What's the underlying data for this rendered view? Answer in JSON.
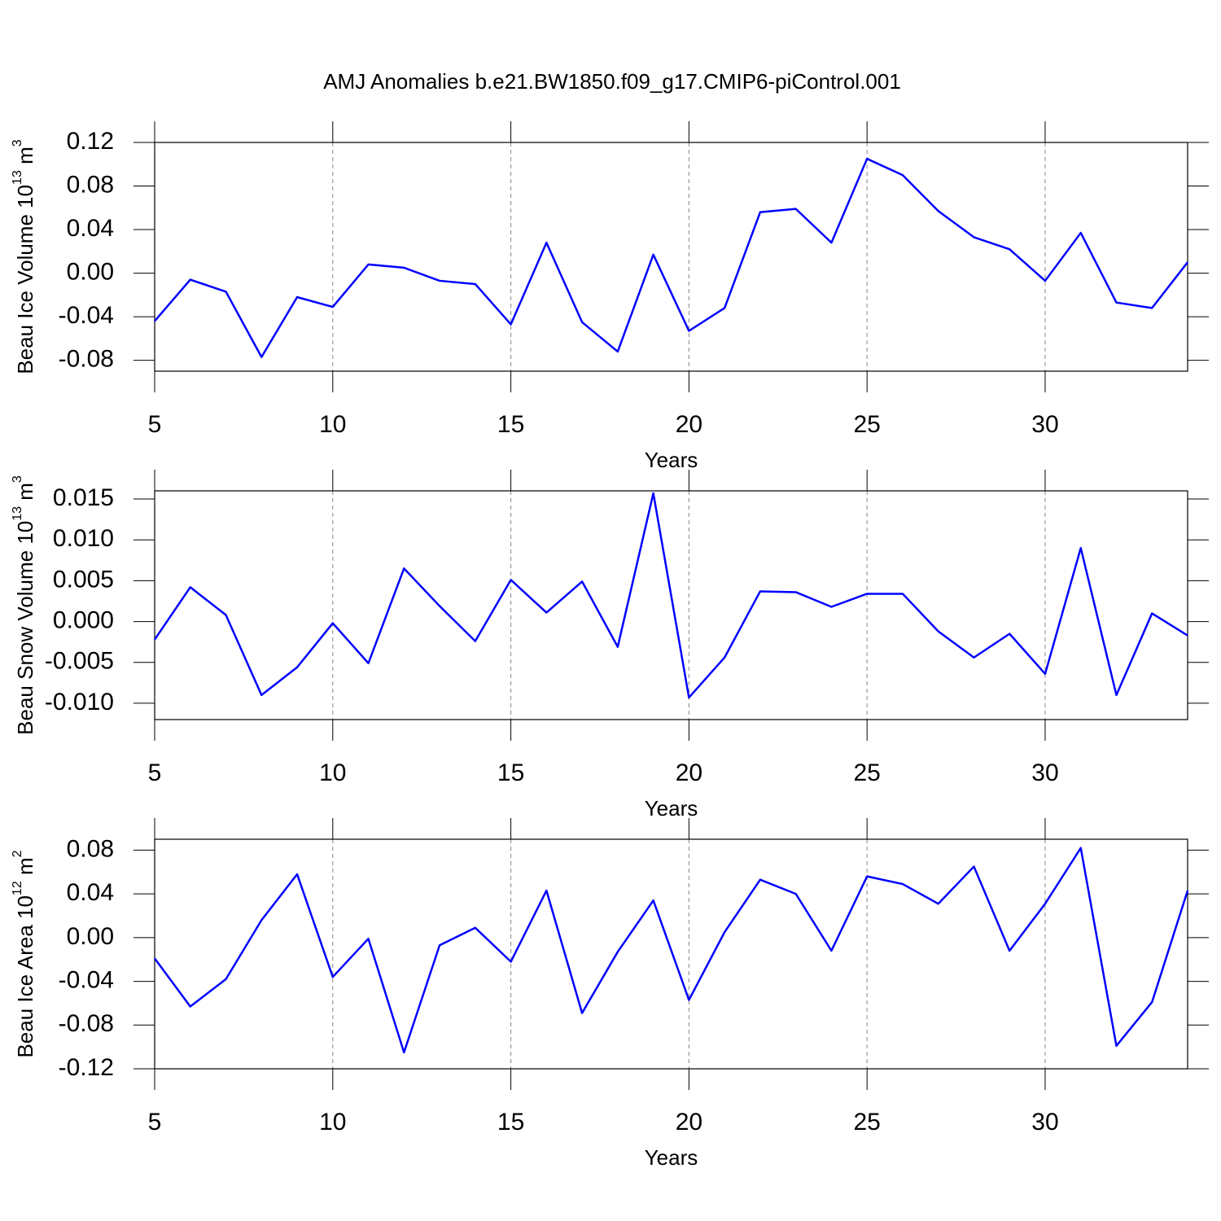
{
  "title": "AMJ Anomalies b.e21.BW1850.f09_g17.CMIP6-piControl.001",
  "chart_data": [
    {
      "type": "line",
      "ylabel": [
        "Beau Ice Volume 10",
        "13",
        " m",
        "3"
      ],
      "xlabel": "Years",
      "x": [
        5,
        6,
        7,
        8,
        9,
        10,
        11,
        12,
        13,
        14,
        15,
        16,
        17,
        18,
        19,
        20,
        21,
        22,
        23,
        24,
        25,
        26,
        27,
        28,
        29,
        30,
        31,
        32,
        33,
        34
      ],
      "series": [
        {
          "color": "#0000ff",
          "values": [
            -0.044,
            -0.006,
            -0.017,
            -0.077,
            -0.022,
            -0.031,
            0.008,
            0.005,
            -0.007,
            -0.01,
            -0.047,
            0.028,
            -0.045,
            -0.072,
            0.017,
            -0.053,
            -0.032,
            0.056,
            0.059,
            0.028,
            0.105,
            0.09,
            0.057,
            0.033,
            0.022,
            -0.007,
            0.037,
            -0.027,
            -0.032,
            0.01
          ]
        }
      ],
      "xlim": [
        5,
        34
      ],
      "xticks": [
        5,
        10,
        15,
        20,
        25,
        30
      ],
      "ylim": [
        -0.09,
        0.12
      ],
      "yticks": [
        -0.08,
        -0.04,
        {
          "value": 0,
          "label": "0.00"
        },
        0.04,
        0.08,
        0.12
      ],
      "grid": "x-dashed"
    },
    {
      "type": "line",
      "ylabel": [
        "Beau Snow Volume 10",
        "13",
        " m",
        "3"
      ],
      "xlabel": "Years",
      "x": [
        5,
        6,
        7,
        8,
        9,
        10,
        11,
        12,
        13,
        14,
        15,
        16,
        17,
        18,
        19,
        20,
        21,
        22,
        23,
        24,
        25,
        26,
        27,
        28,
        29,
        30,
        31,
        32,
        33,
        34
      ],
      "series": [
        {
          "color": "#0000ff",
          "values": [
            -0.0022,
            0.0042,
            0.0008,
            -0.009,
            -0.0056,
            -0.0002,
            -0.0051,
            0.0065,
            0.0019,
            -0.0024,
            0.0051,
            0.0011,
            0.0049,
            -0.0031,
            0.0157,
            -0.0093,
            -0.0044,
            0.0037,
            0.0036,
            0.0018,
            0.0034,
            0.0034,
            -0.0012,
            -0.0044,
            -0.0015,
            -0.0064,
            0.009,
            -0.009,
            0.001,
            -0.0017
          ]
        }
      ],
      "xlim": [
        5,
        34
      ],
      "xticks": [
        5,
        10,
        15,
        20,
        25,
        30
      ],
      "ylim": [
        -0.012,
        0.016
      ],
      "yticks": [
        {
          "value": -0.01,
          "label": "-0.010"
        },
        -0.005,
        {
          "value": 0,
          "label": "0.000"
        },
        0.005,
        {
          "value": 0.01,
          "label": "0.010"
        },
        0.015
      ],
      "grid": "x-dashed"
    },
    {
      "type": "line",
      "ylabel": [
        "Beau Ice Area 10",
        "12",
        " m",
        "2"
      ],
      "xlabel": "Years",
      "x": [
        5,
        6,
        7,
        8,
        9,
        10,
        11,
        12,
        13,
        14,
        15,
        16,
        17,
        18,
        19,
        20,
        21,
        22,
        23,
        24,
        25,
        26,
        27,
        28,
        29,
        30,
        31,
        32,
        33,
        34
      ],
      "series": [
        {
          "color": "#0000ff",
          "values": [
            -0.019,
            -0.063,
            -0.038,
            0.016,
            0.058,
            -0.036,
            -0.001,
            -0.105,
            -0.007,
            0.009,
            -0.022,
            0.043,
            -0.069,
            -0.013,
            0.034,
            -0.057,
            0.005,
            0.053,
            0.04,
            -0.012,
            0.056,
            0.049,
            0.031,
            0.065,
            -0.012,
            0.031,
            0.082,
            -0.099,
            -0.059,
            0.043
          ]
        }
      ],
      "xlim": [
        5,
        34
      ],
      "xticks": [
        5,
        10,
        15,
        20,
        25,
        30
      ],
      "ylim": [
        -0.12,
        0.09
      ],
      "yticks": [
        -0.12,
        -0.08,
        -0.04,
        {
          "value": 0,
          "label": "0.00"
        },
        0.04,
        0.08
      ],
      "grid": "x-dashed"
    }
  ]
}
